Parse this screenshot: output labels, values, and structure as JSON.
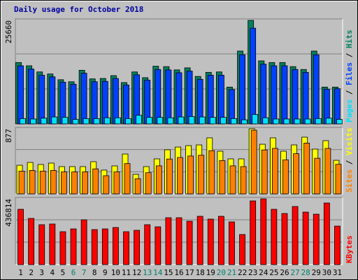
{
  "chart_data": [
    {
      "type": "bar",
      "title": "Daily usage for October 2018",
      "legend_separator": " / ",
      "ylim": [
        0,
        25660
      ],
      "yticks": [
        25660
      ],
      "series": [
        {
          "name": "Pages",
          "color": "#00e0ff",
          "values": [
            1300,
            1200,
            1400,
            1700,
            1600,
            1100,
            1300,
            1300,
            1500,
            1500,
            1300,
            2100,
            1600,
            1600,
            1500,
            1700,
            1800,
            1700,
            1600,
            1600,
            1300,
            1000,
            2300,
            1500,
            1200,
            1200,
            1200,
            1200,
            1300,
            1400,
            1100
          ]
        },
        {
          "name": "Files",
          "color": "#0040ff",
          "values": [
            14200,
            13400,
            11900,
            11500,
            10200,
            9700,
            12400,
            10300,
            10400,
            11100,
            9500,
            12000,
            10700,
            13300,
            13200,
            12500,
            12900,
            10900,
            11900,
            11900,
            8400,
            16900,
            23400,
            14600,
            14200,
            14200,
            13300,
            12600,
            16900,
            8500,
            8600
          ]
        },
        {
          "name": "Hits",
          "color": "#008060",
          "values": [
            15000,
            14200,
            12700,
            12200,
            10800,
            10300,
            13100,
            11000,
            11100,
            11800,
            10100,
            12700,
            11300,
            14100,
            14000,
            13200,
            13700,
            11600,
            12600,
            12700,
            9000,
            17800,
            25300,
            15400,
            15000,
            15000,
            14000,
            13300,
            17800,
            9000,
            9000
          ]
        }
      ]
    },
    {
      "type": "bar",
      "legend_separator": " / ",
      "ylim": [
        0,
        877
      ],
      "yticks": [
        877
      ],
      "series": [
        {
          "name": "Sites",
          "color": "#ff8000",
          "values": [
            300,
            310,
            300,
            310,
            290,
            290,
            290,
            330,
            240,
            290,
            400,
            200,
            280,
            370,
            460,
            480,
            500,
            510,
            570,
            440,
            370,
            360,
            840,
            580,
            600,
            450,
            530,
            670,
            470,
            600,
            390
          ]
        },
        {
          "name": "Visits",
          "color": "#ffff00",
          "values": [
            378,
            415,
            388,
            406,
            360,
            360,
            360,
            425,
            314,
            369,
            526,
            258,
            360,
            462,
            582,
            618,
            637,
            646,
            739,
            563,
            462,
            462,
            859,
            655,
            739,
            563,
            646,
            748,
            591,
            702,
            443
          ]
        }
      ]
    },
    {
      "type": "bar",
      "ylim": [
        0,
        436814
      ],
      "yticks": [
        436814
      ],
      "categories": [
        "1",
        "2",
        "3",
        "4",
        "5",
        "6",
        "7",
        "8",
        "9",
        "10",
        "11",
        "12",
        "13",
        "14",
        "15",
        "16",
        "17",
        "18",
        "19",
        "20",
        "21",
        "22",
        "23",
        "24",
        "25",
        "26",
        "27",
        "28",
        "29",
        "30",
        "31"
      ],
      "highlighted": [
        5,
        6,
        12,
        13,
        19,
        20,
        26,
        27
      ],
      "highlight_color": "#00806c",
      "series": [
        {
          "name": "KBytes",
          "color": "#ff0000",
          "values": [
            359460,
            300300,
            259350,
            263900,
            213860,
            232060,
            291210,
            227510,
            232060,
            241160,
            213860,
            222960,
            259350,
            245710,
            304850,
            304850,
            282110,
            314060,
            295760,
            314060,
            277560,
            195660,
            414060,
            427710,
            359460,
            332160,
            377660,
            341260,
            327610,
            400410,
            250250
          ]
        }
      ]
    }
  ]
}
